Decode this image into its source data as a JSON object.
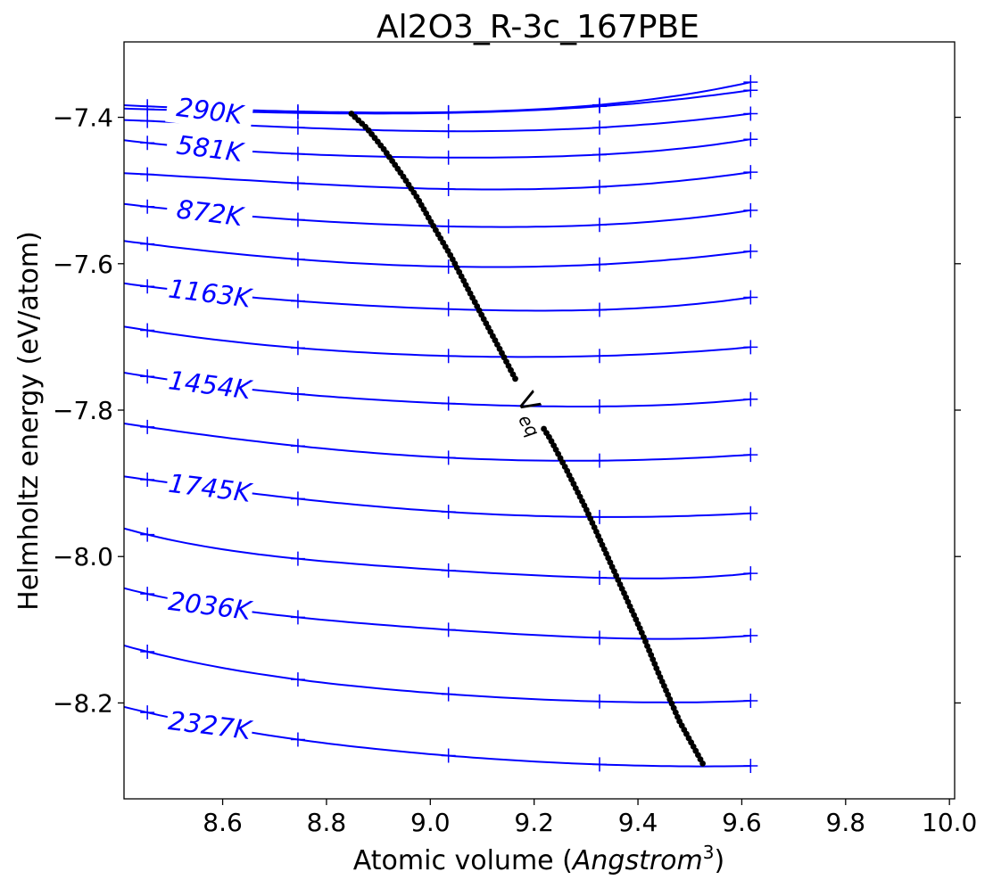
{
  "chart_data": {
    "type": "line",
    "title": "Al2O3_R-3c_167PBE",
    "xlabel_prefix": "Atomic volume (",
    "xlabel_unit": "Angstrom",
    "xlabel_exp": "3",
    "xlabel_suffix": ")",
    "ylabel": "Helmholtz energy (eV/atom)",
    "xlim": [
      8.41,
      10.01
    ],
    "ylim": [
      -8.331,
      -7.297
    ],
    "xticks": [
      8.6,
      8.8,
      9.0,
      9.2,
      9.4,
      9.6,
      9.8,
      10.0
    ],
    "xtick_labels": [
      "8.6",
      "8.8",
      "9.0",
      "9.2",
      "9.4",
      "9.6",
      "9.8",
      "10.0"
    ],
    "yticks": [
      -7.4,
      -7.6,
      -7.8,
      -8.0,
      -8.2
    ],
    "ytick_labels": [
      "−7.4",
      "−7.6",
      "−7.8",
      "−8.0",
      "−8.2"
    ],
    "grid": false,
    "series_color": "#0000ff",
    "veq_color": "#000000",
    "sample_volumes": [
      8.455,
      8.745,
      9.035,
      9.326,
      9.617
    ],
    "isotherms": [
      {
        "F": [
          -7.385,
          -7.392,
          -7.393,
          -7.383,
          -7.352
        ]
      },
      {
        "F": [
          -7.389,
          -7.394,
          -7.394,
          -7.385,
          -7.363
        ]
      },
      {
        "F": [
          -7.405,
          -7.414,
          -7.419,
          -7.414,
          -7.395
        ]
      },
      {
        "F": [
          -7.435,
          -7.45,
          -7.455,
          -7.451,
          -7.43
        ]
      },
      {
        "F": [
          -7.478,
          -7.49,
          -7.498,
          -7.495,
          -7.475
        ]
      },
      {
        "F": [
          -7.522,
          -7.54,
          -7.549,
          -7.547,
          -7.527
        ]
      },
      {
        "F": [
          -7.573,
          -7.594,
          -7.604,
          -7.601,
          -7.583
        ]
      },
      {
        "F": [
          -7.631,
          -7.651,
          -7.662,
          -7.663,
          -7.646
        ]
      },
      {
        "F": [
          -7.691,
          -7.715,
          -7.726,
          -7.726,
          -7.714
        ]
      },
      {
        "F": [
          -7.754,
          -7.778,
          -7.791,
          -7.795,
          -7.785
        ]
      },
      {
        "F": [
          -7.823,
          -7.849,
          -7.865,
          -7.869,
          -7.861
        ]
      },
      {
        "F": [
          -7.895,
          -7.921,
          -7.939,
          -7.946,
          -7.941
        ]
      },
      {
        "F": [
          -7.97,
          -8.003,
          -8.019,
          -8.029,
          -8.023
        ]
      },
      {
        "F": [
          -8.051,
          -8.083,
          -8.1,
          -8.111,
          -8.108
        ]
      },
      {
        "F": [
          -8.13,
          -8.168,
          -8.188,
          -8.198,
          -8.197
        ]
      },
      {
        "F": [
          -8.213,
          -8.25,
          -8.272,
          -8.284,
          -8.286
        ]
      }
    ],
    "curve_labels": [
      {
        "text": "290K",
        "isotherm": 1,
        "v": 8.575
      },
      {
        "text": "581K",
        "isotherm": 3,
        "v": 8.575
      },
      {
        "text": "872K",
        "isotherm": 5,
        "v": 8.575
      },
      {
        "text": "1163K",
        "isotherm": 7,
        "v": 8.575
      },
      {
        "text": "1454K",
        "isotherm": 9,
        "v": 8.575
      },
      {
        "text": "1745K",
        "isotherm": 11,
        "v": 8.575
      },
      {
        "text": "2036K",
        "isotherm": 13,
        "v": 8.575
      },
      {
        "text": "2327K",
        "isotherm": 15,
        "v": 8.575
      }
    ],
    "veq_label": "V",
    "veq_sub": "eq",
    "veq_path": [
      [
        8.848,
        -7.395
      ],
      [
        8.878,
        -7.415
      ],
      [
        8.912,
        -7.445
      ],
      [
        8.945,
        -7.478
      ],
      [
        8.975,
        -7.51
      ],
      [
        9.003,
        -7.545
      ],
      [
        9.04,
        -7.59
      ],
      [
        9.075,
        -7.638
      ],
      [
        9.11,
        -7.685
      ],
      [
        9.14,
        -7.725
      ],
      [
        9.162,
        -7.755
      ],
      [
        9.2,
        -7.805
      ],
      [
        9.23,
        -7.838
      ],
      [
        9.265,
        -7.885
      ],
      [
        9.3,
        -7.935
      ],
      [
        9.335,
        -7.99
      ],
      [
        9.37,
        -8.045
      ],
      [
        9.405,
        -8.1
      ],
      [
        9.44,
        -8.16
      ],
      [
        9.48,
        -8.225
      ],
      [
        9.528,
        -8.287
      ]
    ],
    "veq_gap": [
      9.165,
      9.218
    ]
  }
}
